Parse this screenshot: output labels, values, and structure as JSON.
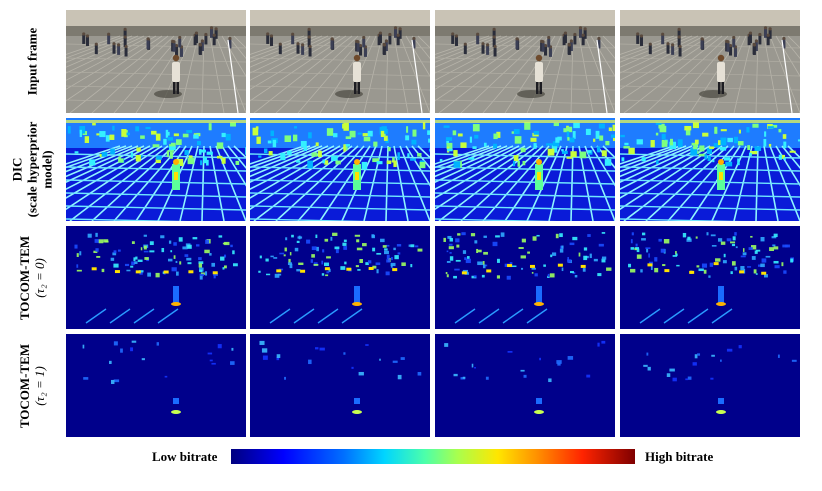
{
  "rows": [
    {
      "id": "input",
      "label_lines": [
        "Input frame"
      ],
      "math": ""
    },
    {
      "id": "dic",
      "label_lines": [
        "DIC",
        "(scale hyperprior",
        "model)"
      ],
      "math": ""
    },
    {
      "id": "tocom0",
      "label_lines": [
        "TOCOM-TEM"
      ],
      "math": "(τ₂ = 0)"
    },
    {
      "id": "tocom1",
      "label_lines": [
        "TOCOM-TEM"
      ],
      "math": "(τ₂ = 1)"
    }
  ],
  "colorbar": {
    "low_label": "Low bitrate",
    "high_label": "High bitrate",
    "colormap": "jet",
    "colors": [
      "#00007f",
      "#0000ff",
      "#00d5ff",
      "#ffe600",
      "#ff2400",
      "#7f0000"
    ]
  },
  "frames_per_row": 4
}
